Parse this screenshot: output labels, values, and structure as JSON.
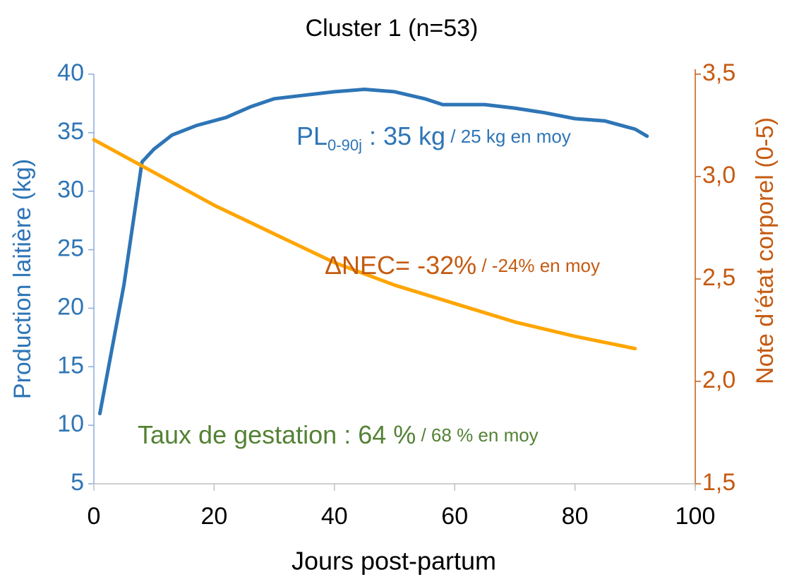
{
  "chart_data": {
    "type": "line",
    "title": "Cluster 1 (n=53)",
    "x_label": "Jours post-partum",
    "y_label": "Production laitière (kg)",
    "y2_label": "Note d’état corporel (0-5)",
    "xlim": [
      0,
      100
    ],
    "xticks": [
      0,
      20,
      40,
      60,
      80,
      100
    ],
    "ylim": [
      5,
      40
    ],
    "yticks": [
      5,
      10,
      15,
      20,
      25,
      30,
      35,
      40
    ],
    "y2lim": [
      1.5,
      3.5
    ],
    "y2ticks": [
      {
        "value": 1.5,
        "label": "1,5"
      },
      {
        "value": 2.0,
        "label": "2,0"
      },
      {
        "value": 2.5,
        "label": "2,5"
      },
      {
        "value": 3.0,
        "label": "3,0"
      },
      {
        "value": 3.5,
        "label": "3,5"
      }
    ],
    "series": [
      {
        "color": "#2e75b6",
        "axis": "y",
        "x": [
          1,
          5,
          8,
          10,
          13,
          17,
          22,
          26,
          30,
          35,
          40,
          45,
          50,
          55,
          58,
          62,
          65,
          70,
          75,
          80,
          85,
          90,
          92
        ],
        "values": [
          11,
          22,
          32.5,
          33.6,
          34.8,
          35.6,
          36.3,
          37.2,
          37.9,
          38.2,
          38.5,
          38.7,
          38.5,
          37.9,
          37.4,
          37.4,
          37.4,
          37.1,
          36.7,
          36.2,
          36.0,
          35.3,
          34.7
        ]
      },
      {
        "color": "#ffa500",
        "axis": "y2",
        "x": [
          0,
          10,
          20,
          30,
          40,
          50,
          60,
          70,
          80,
          90
        ],
        "values": [
          3.18,
          3.02,
          2.86,
          2.72,
          2.58,
          2.47,
          2.38,
          2.29,
          2.22,
          2.16
        ]
      }
    ],
    "annotations": [
      {
        "text": "PL",
        "sub": "0-90j",
        "rest": " : 35 kg",
        "note": " / 25 kg en moy",
        "color": "#2e75b6"
      },
      {
        "text": "ΔNEC= -32%",
        "note": " / -24% en moy",
        "color": "#c55a11"
      },
      {
        "text": "Taux de gestation : 64 %",
        "note": " / 68 % en moy",
        "color": "#548235"
      }
    ]
  }
}
